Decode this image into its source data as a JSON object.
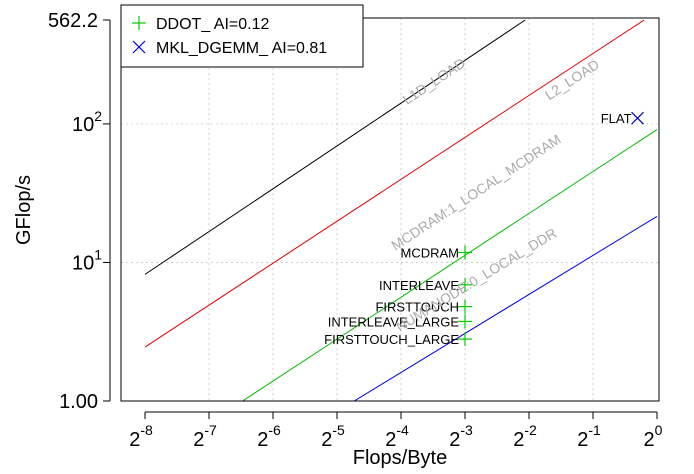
{
  "chart_data": {
    "type": "scatter",
    "title": "",
    "xlabel": "Flops/Byte",
    "ylabel": "GFlop/s",
    "x_scale": "log2",
    "y_scale": "log10",
    "xlim": [
      0.00390625,
      1
    ],
    "ylim": [
      1.0,
      562.2
    ],
    "x_tick_values": [
      0.00390625,
      0.0078125,
      0.015625,
      0.03125,
      0.0625,
      0.125,
      0.25,
      0.5,
      1
    ],
    "x_tick_exponents": [
      "-8",
      "-7",
      "-6",
      "-5",
      "-4",
      "-3",
      "-2",
      "-1",
      "0"
    ],
    "x_tick_base": "2",
    "y_ticks": [
      {
        "value": 1.0,
        "label": "1.00"
      },
      {
        "value": 10,
        "label": "10",
        "sup": "1"
      },
      {
        "value": 100,
        "label": "10",
        "sup": "2"
      },
      {
        "value": 562.2,
        "label": "562.2"
      }
    ],
    "grid": true,
    "legend": {
      "position": "top-left",
      "entries": [
        {
          "label": "DDOT_  AI=0.12",
          "marker": "plus",
          "color": "#00cc00"
        },
        {
          "label": "MKL_DGEMM_  AI=0.81",
          "marker": "cross",
          "color": "#0000cc"
        }
      ]
    },
    "roofs": [
      {
        "label": "L1D_LOAD",
        "color": "#000000",
        "x": [
          0.00390625,
          0.24
        ],
        "y": [
          8.2,
          562.2
        ],
        "label_at_x": 0.092,
        "label_at_y": 190
      },
      {
        "label": "L2_LOAD",
        "color": "#dd0000",
        "x": [
          0.00390625,
          0.87
        ],
        "y": [
          2.45,
          562.2
        ],
        "label_at_x": 0.41,
        "label_at_y": 195
      },
      {
        "label": "MCDRAM:1_LOCAL_MCDRAM",
        "color": "#00bb00",
        "x": [
          0.00833,
          1
        ],
        "y": [
          0.74,
          91
        ],
        "label_at_x": 0.145,
        "label_at_y": 30
      },
      {
        "label": "NUMANODE:0_LOCAL_DDR",
        "color": "#0000dd",
        "x": [
          0.0273,
          1
        ],
        "y": [
          0.74,
          21.5
        ],
        "label_at_x": 0.145,
        "label_at_y": 7
      }
    ],
    "series": [
      {
        "name": "DDOT_  AI=0.12",
        "marker": "plus",
        "color": "#00cc00",
        "points": [
          {
            "x": 0.125,
            "y": 11.8,
            "label": "MCDRAM"
          },
          {
            "x": 0.125,
            "y": 6.9,
            "label": "INTERLEAVE"
          },
          {
            "x": 0.125,
            "y": 4.8,
            "label": "FIRSTTOUCH"
          },
          {
            "x": 0.125,
            "y": 3.75,
            "label": "INTERLEAVE_LARGE"
          },
          {
            "x": 0.125,
            "y": 2.8,
            "label": "FIRSTTOUCH_LARGE"
          }
        ]
      },
      {
        "name": "MKL_DGEMM_  AI=0.81",
        "marker": "cross",
        "color": "#0000cc",
        "points": [
          {
            "x": 0.81,
            "y": 110,
            "label": "FLAT"
          }
        ]
      }
    ]
  }
}
